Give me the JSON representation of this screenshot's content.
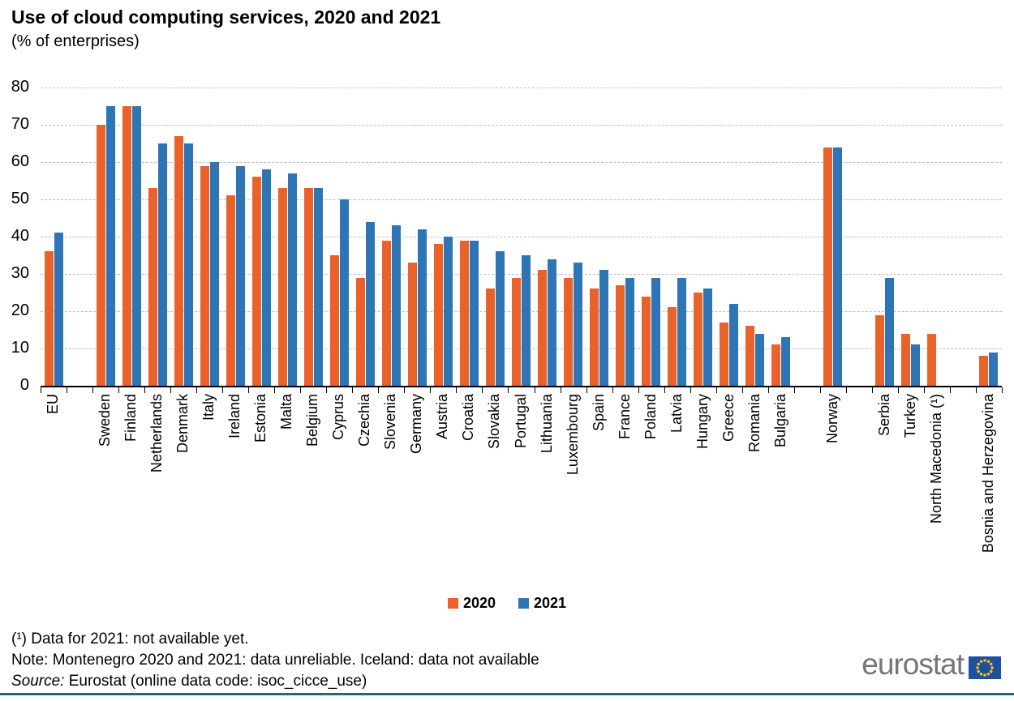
{
  "chart_data": {
    "type": "bar",
    "title": "Use of cloud computing services, 2020 and 2021",
    "subtitle": "(% of enterprises)",
    "categories": [
      "EU",
      "Sweden",
      "Finland",
      "Netherlands",
      "Denmark",
      "Italy",
      "Ireland",
      "Estonia",
      "Malta",
      "Belgium",
      "Cyprus",
      "Czechia",
      "Slovenia",
      "Germany",
      "Austria",
      "Croatia",
      "Slovakia",
      "Portugal",
      "Lithuania",
      "Luxembourg",
      "Spain",
      "France",
      "Poland",
      "Latvia",
      "Hungary",
      "Greece",
      "Romania",
      "Bulgaria",
      "Norway",
      "Serbia",
      "Turkey",
      "North Macedonia (¹)",
      "Bosnia and Herzegovina"
    ],
    "series": [
      {
        "name": "2020",
        "color": "#E8622A",
        "values": [
          36,
          70,
          75,
          53,
          67,
          59,
          51,
          56,
          53,
          53,
          35,
          29,
          39,
          33,
          38,
          39,
          26,
          29,
          31,
          29,
          26,
          27,
          24,
          21,
          25,
          17,
          16,
          11,
          64,
          19,
          14,
          14,
          8
        ]
      },
      {
        "name": "2021",
        "color": "#2E75B6",
        "values": [
          41,
          75,
          75,
          65,
          65,
          60,
          59,
          58,
          57,
          53,
          50,
          44,
          43,
          42,
          40,
          39,
          36,
          35,
          34,
          33,
          31,
          29,
          29,
          29,
          26,
          22,
          14,
          13,
          64,
          29,
          11,
          null,
          9
        ]
      }
    ],
    "ylim": [
      0,
      80
    ],
    "yticks": [
      0,
      10,
      20,
      30,
      40,
      50,
      60,
      70,
      80
    ],
    "xlabel": "",
    "ylabel": "",
    "grid": "horizontal-dashed",
    "gaps_after": [
      "EU",
      "Bulgaria",
      "Norway",
      "North Macedonia (¹)"
    ],
    "legend_position": "bottom-center"
  },
  "legend": {
    "items": [
      {
        "label": "2020",
        "color": "#E8622A"
      },
      {
        "label": "2021",
        "color": "#2E75B6"
      }
    ]
  },
  "footnotes": {
    "line1": "(¹) Data for 2021: not available yet.",
    "line2": "Note: Montenegro 2020 and 2021: data unreliable.  Iceland: data not available",
    "source_label": "Source:",
    "source_rest": " Eurostat (online data code: isoc_cicce_use)"
  },
  "logo": {
    "text": "eurostat"
  }
}
